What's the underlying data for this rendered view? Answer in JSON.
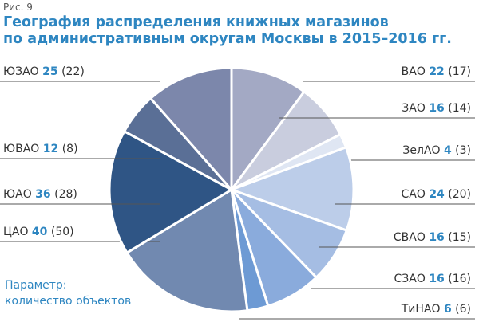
{
  "figure_label": "Рис. 9",
  "title_line1": "География распределения книжных магазинов",
  "title_line2": "по административным округам Москвы в 2015–2016 гг.",
  "parameter_line1": "Параметр:",
  "parameter_line2": "количество объектов",
  "chart_data": {
    "type": "pie",
    "title": "География распределения книжных магазинов по административным округам Москвы в 2015–2016 гг.",
    "start": "12 o'clock, clockwise",
    "slices": [
      {
        "name": "ВАО",
        "value": 22,
        "prev": "(17)",
        "color": "#a3a9c4"
      },
      {
        "name": "ЗАО",
        "value": 16,
        "prev": "(14)",
        "color": "#c9cdde"
      },
      {
        "name": "ЗелАО",
        "value": 4,
        "prev": "(3)",
        "color": "#dfe6f3"
      },
      {
        "name": "САО",
        "value": 24,
        "prev": "(20)",
        "color": "#bccde9"
      },
      {
        "name": "СВАО",
        "value": 16,
        "prev": "(15)",
        "color": "#a5bde3"
      },
      {
        "name": "СЗАО",
        "value": 16,
        "prev": "(16)",
        "color": "#8aabdc"
      },
      {
        "name": "ТиНАО",
        "value": 6,
        "prev": "(6)",
        "color": "#6d9ad4"
      },
      {
        "name": "ЦАО",
        "value": 40,
        "prev": "(50)",
        "color": "#7189b0"
      },
      {
        "name": "ЮАО",
        "value": 36,
        "prev": "(28)",
        "color": "#2f5585"
      },
      {
        "name": "ЮВАО",
        "value": 12,
        "prev": "(8)",
        "color": "#5a6f96"
      },
      {
        "name": "ЮЗАО",
        "value": 25,
        "prev": "(22)",
        "color": "#7c87ab"
      }
    ]
  }
}
